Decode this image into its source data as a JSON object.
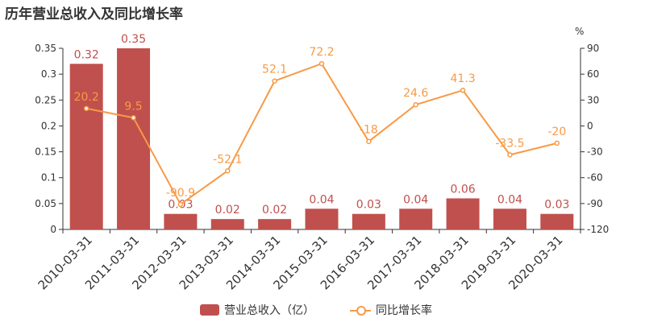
{
  "chart_data": {
    "type": "bar+line",
    "title": "历年营业总收入及同比增长率",
    "categories": [
      "2010-03-31",
      "2011-03-31",
      "2012-03-31",
      "2013-03-31",
      "2014-03-31",
      "2015-03-31",
      "2016-03-31",
      "2017-03-31",
      "2018-03-31",
      "2019-03-31",
      "2020-03-31"
    ],
    "series": [
      {
        "name": "营业总收入（亿）",
        "kind": "bar",
        "axis": "left",
        "color": "#c0504d",
        "values": [
          0.32,
          0.35,
          0.03,
          0.02,
          0.02,
          0.04,
          0.03,
          0.04,
          0.06,
          0.04,
          0.03
        ],
        "labels": [
          "0.32",
          "0.35",
          "0.03",
          "0.02",
          "0.02",
          "0.04",
          "0.03",
          "0.04",
          "0.06",
          "0.04",
          "0.03"
        ]
      },
      {
        "name": "同比增长率",
        "kind": "line",
        "axis": "right",
        "color": "#f79a46",
        "values": [
          20.2,
          9.5,
          -90.9,
          -52.1,
          52.1,
          72.2,
          -18,
          24.6,
          41.3,
          -33.5,
          -20
        ],
        "labels": [
          "20.2",
          "9.5",
          "-90.9",
          "-52.1",
          "52.1",
          "72.2",
          "-18",
          "24.6",
          "41.3",
          "-33.5",
          "-20"
        ]
      }
    ],
    "y_left": {
      "range": [
        0,
        0.35
      ],
      "ticks": [
        "0",
        "0.05",
        "0.1",
        "0.15",
        "0.2",
        "0.25",
        "0.3",
        "0.35"
      ],
      "tick_values": [
        0,
        0.05,
        0.1,
        0.15,
        0.2,
        0.25,
        0.3,
        0.35
      ]
    },
    "y_right": {
      "unit": "%",
      "range": [
        -120,
        90
      ],
      "ticks": [
        "-120",
        "-90",
        "-60",
        "-30",
        "0",
        "30",
        "60",
        "90"
      ],
      "tick_values": [
        -120,
        -90,
        -60,
        -30,
        0,
        30,
        60,
        90
      ]
    },
    "grid": false,
    "legend_position": "bottom"
  }
}
